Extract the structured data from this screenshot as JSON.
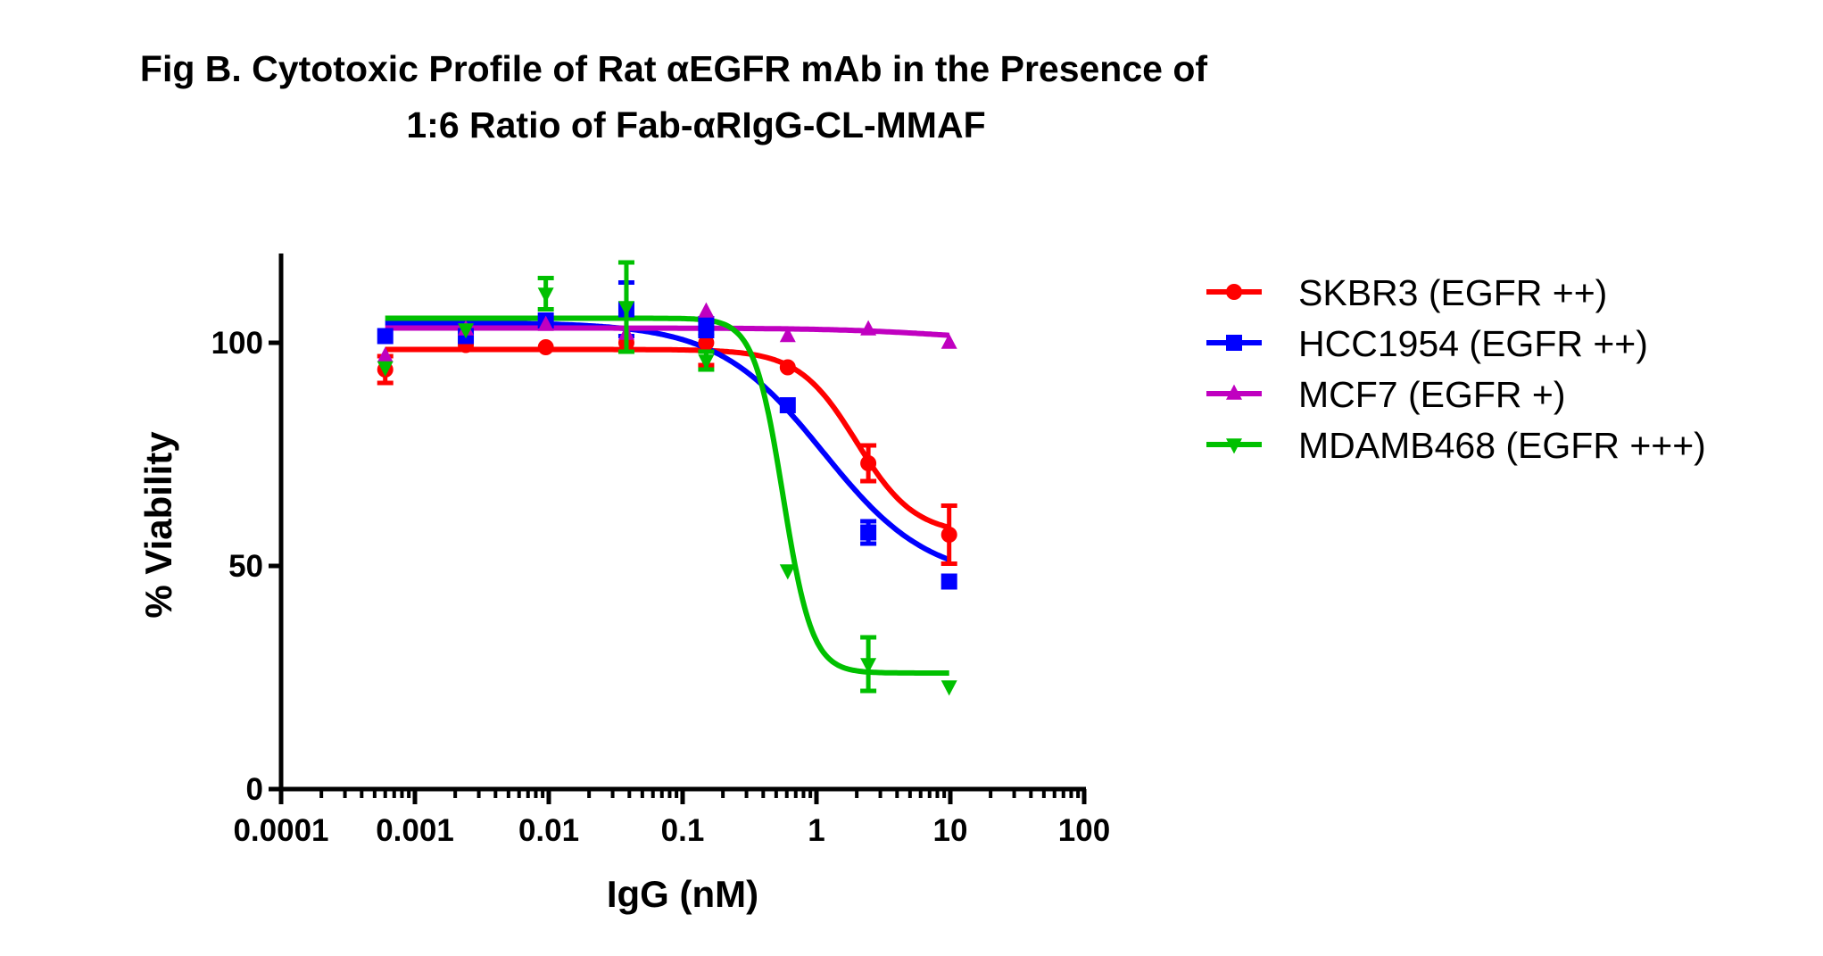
{
  "chart_data": {
    "type": "scatter",
    "title_lines": [
      "Fig B. Cytotoxic Profile of Rat αEGFR mAb in the Presence of",
      "1:6 Ratio of Fab-αRIgG-CL-MMAF"
    ],
    "xlabel": "IgG (nM)",
    "ylabel": "% Viability",
    "xscale": "log",
    "xlim": [
      0.0001,
      100
    ],
    "ylim": [
      0,
      120
    ],
    "xticks": [
      0.0001,
      0.001,
      0.01,
      0.1,
      1,
      10,
      100
    ],
    "xtick_labels": [
      "0.0001",
      "0.001",
      "0.01",
      "0.1",
      "1",
      "10",
      "100"
    ],
    "yticks": [
      0,
      50,
      100
    ],
    "ytick_labels": [
      "0",
      "50",
      "100"
    ],
    "grid": false,
    "legend_position": "right",
    "x": [
      0.0006,
      0.0024,
      0.0095,
      0.038,
      0.15,
      0.61,
      2.44,
      9.8
    ],
    "series": [
      {
        "name": "SKBR3 (EGFR ++)",
        "color": "#ff0000",
        "marker": "circle",
        "values": [
          94,
          99.5,
          99,
          100,
          100,
          94.5,
          73,
          57
        ],
        "errors": [
          3,
          0.5,
          0.5,
          1,
          5,
          0.5,
          4,
          6.5
        ],
        "fit": {
          "top": 98.5,
          "bottom": 57,
          "logEC50": 0.3,
          "hill": 2.0
        }
      },
      {
        "name": "HCC1954 (EGFR ++)",
        "color": "#0000ff",
        "marker": "square",
        "values": [
          101.5,
          101.5,
          105,
          107.5,
          103.5,
          86,
          57.5,
          46.5
        ],
        "errors": [
          1,
          0.5,
          1,
          6,
          2,
          0.5,
          2.5,
          0.5
        ],
        "fit": {
          "top": 104.5,
          "bottom": 46.5,
          "logEC50": 0.05,
          "hill": 1.1
        }
      },
      {
        "name": "MCF7 (EGFR +)",
        "color": "#c000c0",
        "marker": "triangle-up",
        "values": [
          97,
          103,
          104,
          102,
          107,
          101.5,
          103,
          100
        ],
        "errors": [
          0.5,
          0.5,
          0.5,
          0.5,
          0.5,
          0.5,
          0.5,
          0.5
        ],
        "fit": {
          "top": 103.3,
          "bottom": 100,
          "logEC50": 1.0,
          "hill": 1.0
        }
      },
      {
        "name": "MDAMB468 (EGFR +++)",
        "color": "#00c000",
        "marker": "triangle-down",
        "values": [
          94.5,
          103,
          111,
          108,
          96,
          49,
          28,
          23
        ],
        "errors": [
          1,
          0.5,
          3.5,
          10,
          2,
          0.5,
          6,
          0.5
        ],
        "fit": {
          "top": 105.5,
          "bottom": 26,
          "logEC50": -0.25,
          "hill": 4.0
        }
      }
    ]
  }
}
